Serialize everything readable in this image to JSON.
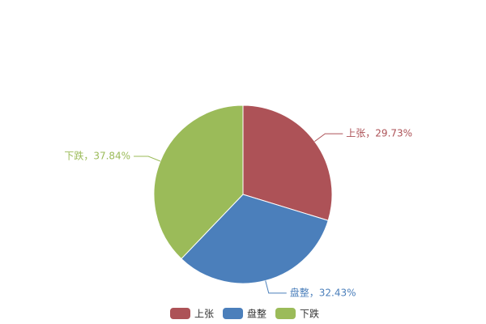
{
  "chart_data": {
    "type": "pie",
    "categories": [
      "上张",
      "盘整",
      "下跌"
    ],
    "values": [
      29.73,
      32.43,
      37.84
    ],
    "value_labels": [
      "上张，29.73%",
      "盘整，32.43%",
      "下跌，37.84%"
    ],
    "colors": [
      "#ad5257",
      "#4b7fbb",
      "#9bbb59"
    ]
  }
}
